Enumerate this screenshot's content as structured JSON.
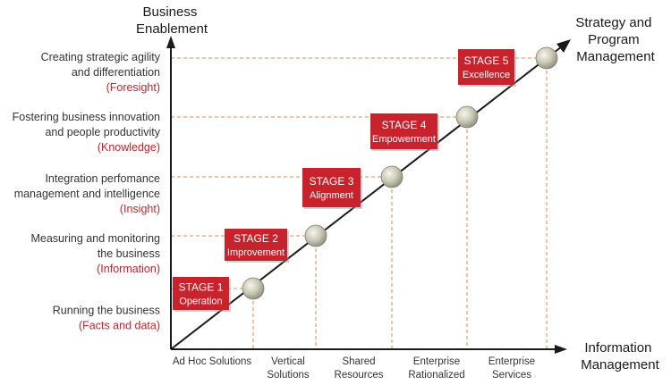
{
  "y_axis_title": [
    "Business",
    "Enablement"
  ],
  "x_axis_title": [
    "Information",
    "Management"
  ],
  "diagonal_label": [
    "Strategy and",
    "Program",
    "Management"
  ],
  "colors": {
    "accent_red": "#c8232c",
    "axis": "#1a1a1a",
    "guide": "#e8a070",
    "text": "#333333",
    "node": "#c9c6b4"
  },
  "levels": [
    {
      "line1": "Running the business",
      "line2": "",
      "keyword": "(Facts and data)"
    },
    {
      "line1": "Measuring and monitoring",
      "line2": "the business",
      "keyword": "(Information)"
    },
    {
      "line1": "Integration perfomance",
      "line2": "management and intelligence",
      "keyword": "(Insight)"
    },
    {
      "line1": "Fostering business innovation",
      "line2": "and people productivity",
      "keyword": "(Knowledge)"
    },
    {
      "line1": "Creating strategic agility",
      "line2": "and differentiation",
      "keyword": "(Foresight)"
    }
  ],
  "x_categories": [
    {
      "line1": "Ad Hoc Solutions",
      "line2": ""
    },
    {
      "line1": "Vertical",
      "line2": "Solutions"
    },
    {
      "line1": "Shared",
      "line2": "Resources"
    },
    {
      "line1": "Enterprise",
      "line2": "Rationalized"
    },
    {
      "line1": "Enterprise",
      "line2": "Services"
    }
  ],
  "stages": [
    {
      "title": "STAGE 1",
      "name": "Operation"
    },
    {
      "title": "STAGE 2",
      "name": "Improvement"
    },
    {
      "title": "STAGE 3",
      "name": "Alignment"
    },
    {
      "title": "STAGE 4",
      "name": "Empowerment"
    },
    {
      "title": "STAGE 5",
      "name": "Excellence"
    }
  ]
}
